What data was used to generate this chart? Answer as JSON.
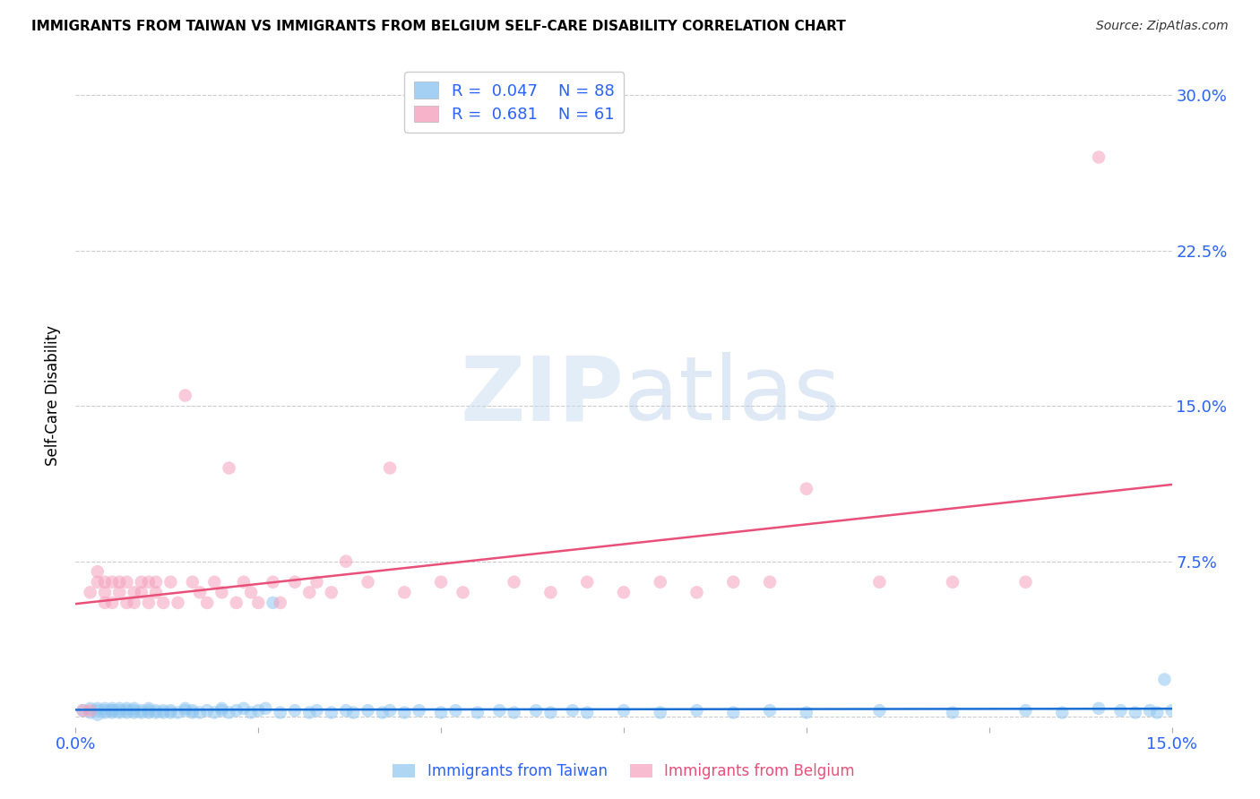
{
  "title": "IMMIGRANTS FROM TAIWAN VS IMMIGRANTS FROM BELGIUM SELF-CARE DISABILITY CORRELATION CHART",
  "source": "Source: ZipAtlas.com",
  "ylabel": "Self-Care Disability",
  "ytick_values": [
    0.0,
    0.075,
    0.15,
    0.225,
    0.3
  ],
  "ytick_labels": [
    "0.0%",
    "7.5%",
    "15.0%",
    "22.5%",
    "30.0%"
  ],
  "xlim": [
    0.0,
    0.15
  ],
  "ylim": [
    -0.005,
    0.315
  ],
  "taiwan_R": 0.047,
  "taiwan_N": 88,
  "belgium_R": 0.681,
  "belgium_N": 61,
  "taiwan_color": "#8ec6f0",
  "belgium_color": "#f4a0bc",
  "taiwan_line_color": "#1a6fd4",
  "belgium_line_color": "#e8507a",
  "legend_taiwan": "Immigrants from Taiwan",
  "legend_belgium": "Immigrants from Belgium",
  "taiwan_x": [
    0.001,
    0.002,
    0.002,
    0.003,
    0.003,
    0.003,
    0.004,
    0.004,
    0.004,
    0.005,
    0.005,
    0.005,
    0.005,
    0.006,
    0.006,
    0.006,
    0.007,
    0.007,
    0.007,
    0.008,
    0.008,
    0.008,
    0.009,
    0.009,
    0.01,
    0.01,
    0.01,
    0.011,
    0.011,
    0.012,
    0.012,
    0.013,
    0.013,
    0.014,
    0.015,
    0.015,
    0.016,
    0.016,
    0.017,
    0.018,
    0.019,
    0.02,
    0.02,
    0.021,
    0.022,
    0.023,
    0.024,
    0.025,
    0.026,
    0.027,
    0.028,
    0.03,
    0.032,
    0.033,
    0.035,
    0.037,
    0.038,
    0.04,
    0.042,
    0.043,
    0.045,
    0.047,
    0.05,
    0.052,
    0.055,
    0.058,
    0.06,
    0.063,
    0.065,
    0.068,
    0.07,
    0.075,
    0.08,
    0.085,
    0.09,
    0.095,
    0.1,
    0.11,
    0.12,
    0.13,
    0.135,
    0.14,
    0.143,
    0.145,
    0.147,
    0.148,
    0.149,
    0.15
  ],
  "taiwan_y": [
    0.003,
    0.002,
    0.004,
    0.001,
    0.003,
    0.004,
    0.002,
    0.003,
    0.004,
    0.002,
    0.003,
    0.004,
    0.003,
    0.002,
    0.004,
    0.003,
    0.002,
    0.003,
    0.004,
    0.002,
    0.003,
    0.004,
    0.002,
    0.003,
    0.002,
    0.003,
    0.004,
    0.002,
    0.003,
    0.002,
    0.003,
    0.002,
    0.003,
    0.002,
    0.003,
    0.004,
    0.002,
    0.003,
    0.002,
    0.003,
    0.002,
    0.003,
    0.004,
    0.002,
    0.003,
    0.004,
    0.002,
    0.003,
    0.004,
    0.055,
    0.002,
    0.003,
    0.002,
    0.003,
    0.002,
    0.003,
    0.002,
    0.003,
    0.002,
    0.003,
    0.002,
    0.003,
    0.002,
    0.003,
    0.002,
    0.003,
    0.002,
    0.003,
    0.002,
    0.003,
    0.002,
    0.003,
    0.002,
    0.003,
    0.002,
    0.003,
    0.002,
    0.003,
    0.002,
    0.003,
    0.002,
    0.004,
    0.003,
    0.002,
    0.003,
    0.002,
    0.018,
    0.003
  ],
  "belgium_x": [
    0.001,
    0.002,
    0.002,
    0.003,
    0.003,
    0.004,
    0.004,
    0.004,
    0.005,
    0.005,
    0.006,
    0.006,
    0.007,
    0.007,
    0.008,
    0.008,
    0.009,
    0.009,
    0.01,
    0.01,
    0.011,
    0.011,
    0.012,
    0.013,
    0.014,
    0.015,
    0.016,
    0.017,
    0.018,
    0.019,
    0.02,
    0.021,
    0.022,
    0.023,
    0.024,
    0.025,
    0.027,
    0.028,
    0.03,
    0.032,
    0.033,
    0.035,
    0.037,
    0.04,
    0.043,
    0.045,
    0.05,
    0.053,
    0.06,
    0.065,
    0.07,
    0.075,
    0.08,
    0.085,
    0.09,
    0.095,
    0.1,
    0.11,
    0.12,
    0.13,
    0.14
  ],
  "belgium_y": [
    0.003,
    0.003,
    0.06,
    0.065,
    0.07,
    0.055,
    0.065,
    0.06,
    0.055,
    0.065,
    0.06,
    0.065,
    0.055,
    0.065,
    0.06,
    0.055,
    0.065,
    0.06,
    0.055,
    0.065,
    0.06,
    0.065,
    0.055,
    0.065,
    0.055,
    0.155,
    0.065,
    0.06,
    0.055,
    0.065,
    0.06,
    0.12,
    0.055,
    0.065,
    0.06,
    0.055,
    0.065,
    0.055,
    0.065,
    0.06,
    0.065,
    0.06,
    0.075,
    0.065,
    0.12,
    0.06,
    0.065,
    0.06,
    0.065,
    0.06,
    0.065,
    0.06,
    0.065,
    0.06,
    0.065,
    0.065,
    0.11,
    0.065,
    0.065,
    0.065,
    0.27
  ]
}
